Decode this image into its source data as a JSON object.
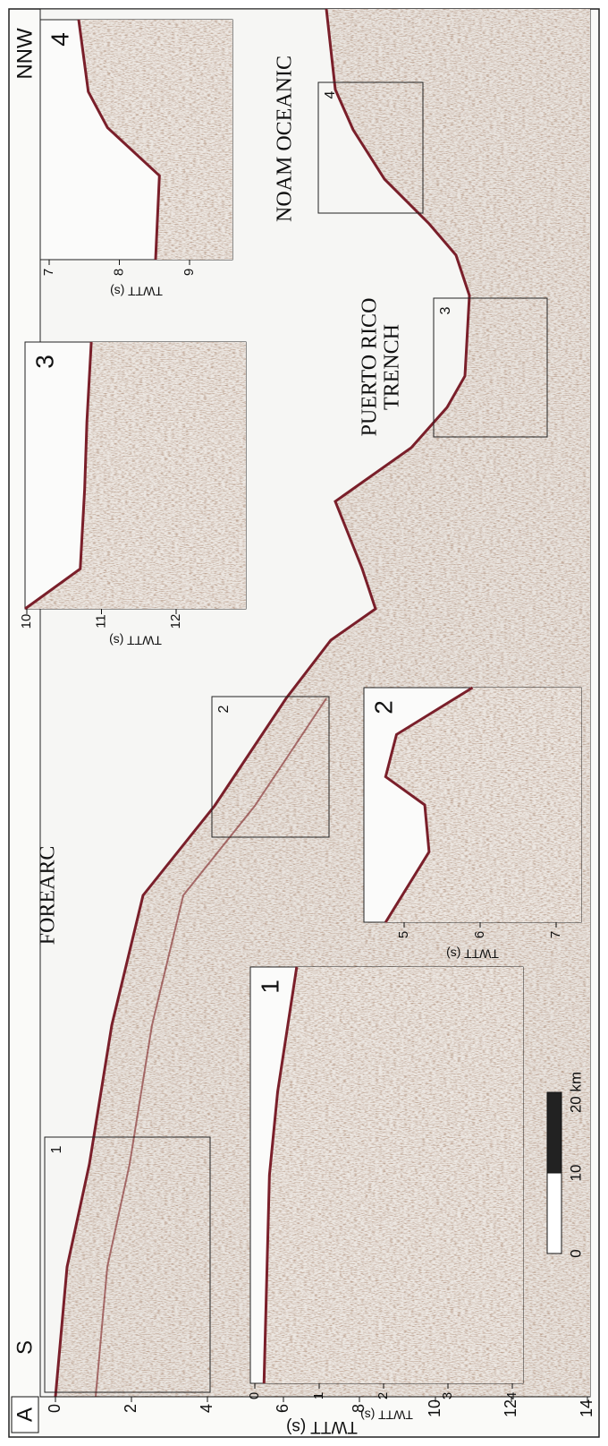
{
  "figure": {
    "panel_label": "A",
    "left_end": "S",
    "right_end": "NNW",
    "axis": {
      "label": "TWTT (s)",
      "ticks": [
        0,
        2,
        4,
        6,
        8,
        10,
        12,
        14
      ]
    },
    "regions": {
      "forearc": "FOREARC",
      "trench": [
        "PUERTO RICO",
        "TRENCH"
      ],
      "oceanic": "NOAM OCEANIC"
    },
    "boxes": [
      "1",
      "2",
      "3",
      "4"
    ],
    "insets": [
      {
        "label": "1",
        "axis_label": "TWTT (s)",
        "ticks": [
          0,
          1,
          2,
          3,
          4
        ]
      },
      {
        "label": "2",
        "axis_label": "TWTT (s)",
        "ticks": [
          5,
          6,
          7
        ]
      },
      {
        "label": "3",
        "axis_label": "TWTT (s)",
        "ticks": [
          10,
          11,
          12
        ]
      },
      {
        "label": "4",
        "axis_label": "TWTT (s)",
        "ticks": [
          7,
          8,
          9
        ]
      }
    ],
    "scale_bar": {
      "ticks": [
        0,
        10,
        {
          "value": 20,
          "label": "20 km"
        }
      ]
    }
  }
}
